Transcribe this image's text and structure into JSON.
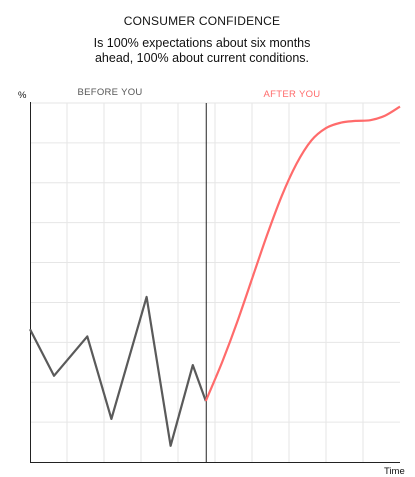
{
  "chart_data": {
    "type": "line",
    "title": "CONSUMER CONFIDENCE",
    "subtitle_lines": [
      "Is 100% expectations about six months",
      "ahead, 100% about current conditions."
    ],
    "ylabel": "%",
    "xlabel": "Time",
    "ylim": [
      0,
      100
    ],
    "xlim": [
      0,
      100
    ],
    "grid": true,
    "divider_x": 47.5,
    "regions": [
      {
        "label": "BEFORE YOU"
      },
      {
        "label": "AFTER YOU"
      }
    ],
    "series": [
      {
        "color": "#5a5a5a",
        "points": [
          [
            0,
            37
          ],
          [
            6.5,
            24
          ],
          [
            15.5,
            35
          ],
          [
            22,
            12
          ],
          [
            31.5,
            46
          ],
          [
            38,
            4.5
          ],
          [
            44,
            27
          ],
          [
            47.5,
            17
          ]
        ]
      },
      {
        "color": "#ff6b6b",
        "points": [
          [
            47.5,
            17
          ],
          [
            52,
            28
          ],
          [
            56,
            39
          ],
          [
            60,
            51
          ],
          [
            64,
            63
          ],
          [
            68,
            74
          ],
          [
            72,
            83
          ],
          [
            76,
            89.5
          ],
          [
            80,
            93
          ],
          [
            84,
            94.5
          ],
          [
            88,
            95
          ],
          [
            92,
            95.2
          ],
          [
            96,
            96.5
          ],
          [
            100,
            99
          ]
        ]
      }
    ]
  },
  "colors": {
    "before": "#5a5a5a",
    "after": "#ff6b6b",
    "grid": "#e6e6e6",
    "axis": "#222222"
  }
}
